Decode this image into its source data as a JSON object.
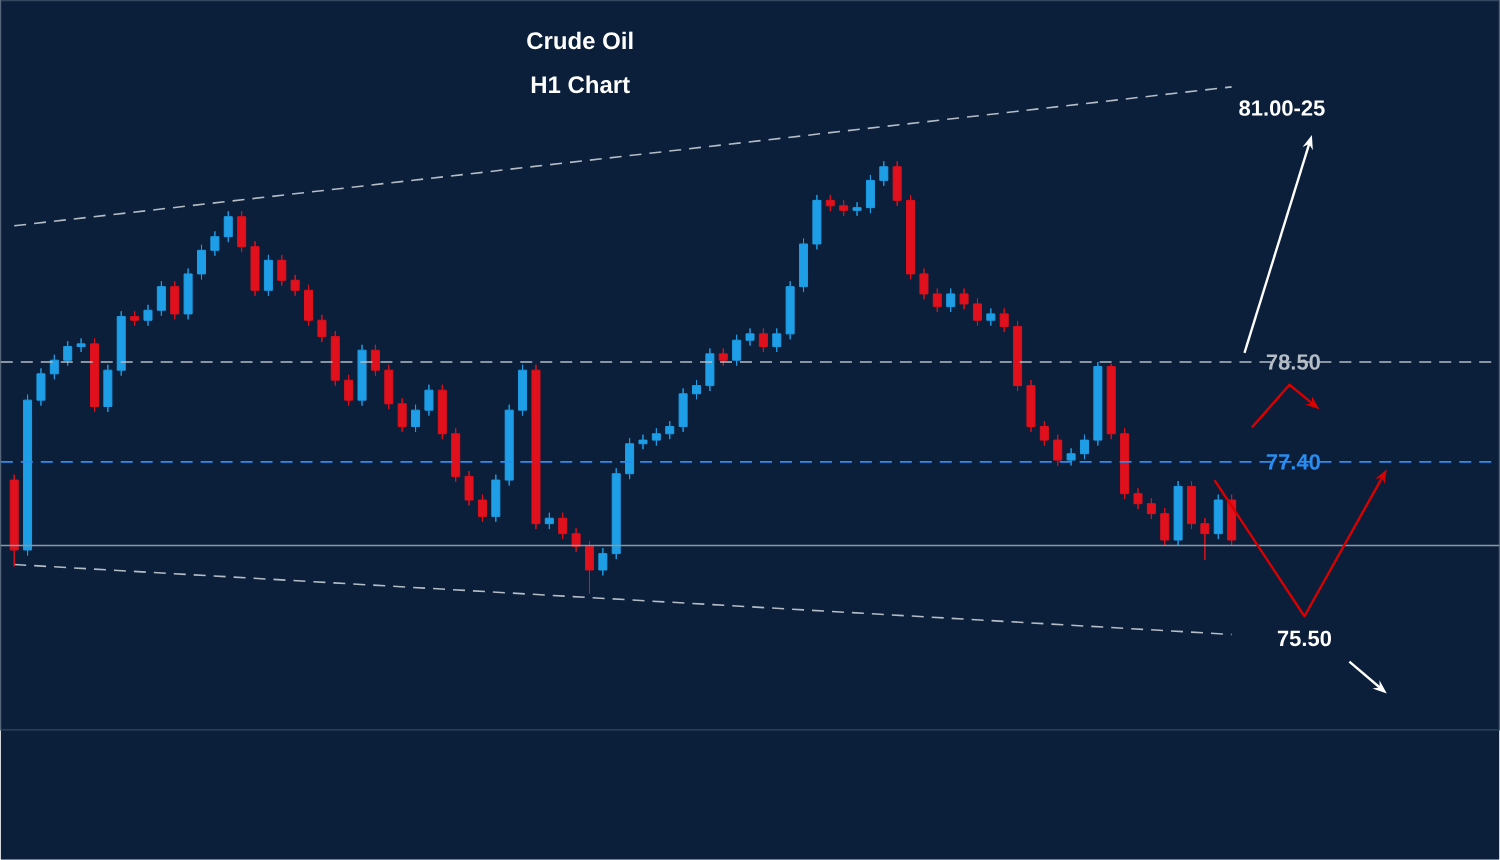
{
  "chart_data": {
    "type": "candlestick",
    "title": "Crude Oil",
    "subtitle": "H1 Chart",
    "categories": [
      null,
      null,
      null,
      null,
      null,
      null,
      null,
      null,
      null,
      null,
      null,
      null,
      null,
      null,
      null,
      null,
      null,
      null,
      null,
      null,
      null,
      null,
      null,
      null,
      null,
      null,
      null,
      null,
      null,
      null,
      null,
      null,
      null,
      null,
      null,
      null,
      null,
      null,
      null,
      null,
      null,
      null,
      null,
      null,
      null,
      null,
      null,
      null,
      null,
      null,
      null,
      null,
      null,
      null,
      null,
      null,
      null,
      null,
      null,
      null,
      null,
      null,
      null,
      null,
      null,
      null,
      null,
      null,
      null,
      null,
      null,
      null,
      null,
      null,
      null,
      null,
      null,
      null,
      null,
      null,
      null,
      null,
      null,
      null,
      null,
      null,
      null,
      null,
      null,
      null,
      null,
      null
    ],
    "colors": [
      "#e0101c",
      "#1e9ee6",
      "#1e9ee6",
      "#1e9ee6",
      "#1e9ee6",
      "#1e9ee6",
      "#e0101c",
      "#1e9ee6",
      "#1e9ee6",
      "#e0101c",
      "#1e9ee6",
      "#1e9ee6",
      "#e0101c",
      "#1e9ee6",
      "#1e9ee6",
      "#1e9ee6",
      "#1e9ee6",
      "#e0101c",
      "#e0101c",
      "#1e9ee6",
      "#e0101c",
      "#e0101c",
      "#e0101c",
      "#e0101c",
      "#e0101c",
      "#e0101c",
      "#1e9ee6",
      "#e0101c",
      "#e0101c",
      "#e0101c",
      "#1e9ee6",
      "#1e9ee6",
      "#e0101c",
      "#e0101c",
      "#e0101c",
      "#e0101c",
      "#1e9ee6",
      "#1e9ee6",
      "#1e9ee6",
      "#e0101c",
      "#1e9ee6",
      "#e0101c",
      "#e0101c",
      "#e0101c",
      "#1e9ee6",
      "#1e9ee6",
      "#1e9ee6",
      "#1e9ee6",
      "#1e9ee6",
      "#1e9ee6",
      "#1e9ee6",
      "#1e9ee6",
      "#1e9ee6",
      "#e0101c",
      "#1e9ee6",
      "#1e9ee6",
      "#e0101c",
      "#1e9ee6",
      "#1e9ee6",
      "#1e9ee6",
      "#1e9ee6",
      "#e0101c",
      "#e0101c",
      "#1e9ee6",
      "#1e9ee6",
      "#1e9ee6",
      "#e0101c",
      "#e0101c",
      "#e0101c",
      "#e0101c",
      "#1e9ee6",
      "#e0101c",
      "#e0101c",
      "#1e9ee6",
      "#e0101c",
      "#e0101c",
      "#e0101c",
      "#e0101c",
      "#e0101c",
      "#1e9ee6",
      "#1e9ee6",
      "#1e9ee6",
      "#e0101c",
      "#e0101c",
      "#e0101c",
      "#e0101c",
      "#e0101c",
      "#1e9ee6",
      "#e0101c",
      "#e0101c",
      "#1e9ee6",
      "#e0101c"
    ],
    "ohlc": [
      [
        77.2,
        77.26,
        76.25,
        76.43
      ],
      [
        76.43,
        78.14,
        76.37,
        78.08
      ],
      [
        78.08,
        78.43,
        78.02,
        78.37
      ],
      [
        78.37,
        78.58,
        78.31,
        78.52
      ],
      [
        78.52,
        78.73,
        78.46,
        78.67
      ],
      [
        78.67,
        78.76,
        78.61,
        78.7
      ],
      [
        78.7,
        78.76,
        77.95,
        78.01
      ],
      [
        78.01,
        78.47,
        77.95,
        78.41
      ],
      [
        78.41,
        79.06,
        78.35,
        79.0
      ],
      [
        79.0,
        79.06,
        78.9,
        78.96
      ],
      [
        78.96,
        79.13,
        78.9,
        79.07
      ],
      [
        79.07,
        79.39,
        79.01,
        79.33
      ],
      [
        79.33,
        79.39,
        78.97,
        79.03
      ],
      [
        79.03,
        79.53,
        78.97,
        79.47
      ],
      [
        79.47,
        79.79,
        79.41,
        79.73
      ],
      [
        79.73,
        79.94,
        79.67,
        79.88
      ],
      [
        79.88,
        80.16,
        79.82,
        80.1
      ],
      [
        80.1,
        80.16,
        79.71,
        79.77
      ],
      [
        79.77,
        79.83,
        79.23,
        79.29
      ],
      [
        79.29,
        79.68,
        79.23,
        79.62
      ],
      [
        79.62,
        79.68,
        79.34,
        79.4
      ],
      [
        79.4,
        79.46,
        79.23,
        79.29
      ],
      [
        79.29,
        79.35,
        78.9,
        78.96
      ],
      [
        78.96,
        79.02,
        78.72,
        78.78
      ],
      [
        78.78,
        78.84,
        78.24,
        78.3
      ],
      [
        78.3,
        78.36,
        78.02,
        78.08
      ],
      [
        78.08,
        78.69,
        78.02,
        78.63
      ],
      [
        78.63,
        78.69,
        78.35,
        78.41
      ],
      [
        78.41,
        78.47,
        77.98,
        78.04
      ],
      [
        78.04,
        78.1,
        77.73,
        77.79
      ],
      [
        77.79,
        78.03,
        77.73,
        77.97
      ],
      [
        77.97,
        78.25,
        77.91,
        78.19
      ],
      [
        78.19,
        78.25,
        77.65,
        77.71
      ],
      [
        77.71,
        77.77,
        77.18,
        77.24
      ],
      [
        77.24,
        77.3,
        76.92,
        76.98
      ],
      [
        76.98,
        77.04,
        76.74,
        76.8
      ],
      [
        76.8,
        77.26,
        76.74,
        77.2
      ],
      [
        77.2,
        78.03,
        77.14,
        77.97
      ],
      [
        77.97,
        78.47,
        77.91,
        78.41
      ],
      [
        78.41,
        78.47,
        76.66,
        76.72
      ],
      [
        76.72,
        76.84,
        76.66,
        76.78
      ],
      [
        76.78,
        76.84,
        76.55,
        76.61
      ],
      [
        76.61,
        76.67,
        76.41,
        76.47
      ],
      [
        76.47,
        76.53,
        75.95,
        76.21
      ],
      [
        76.21,
        76.45,
        76.15,
        76.39
      ],
      [
        76.39,
        77.33,
        76.33,
        77.27
      ],
      [
        77.27,
        77.66,
        77.21,
        77.6
      ],
      [
        77.6,
        77.7,
        77.54,
        77.64
      ],
      [
        77.64,
        77.77,
        77.58,
        77.71
      ],
      [
        77.71,
        77.85,
        77.65,
        77.79
      ],
      [
        77.79,
        78.21,
        77.73,
        78.15
      ],
      [
        78.15,
        78.3,
        78.09,
        78.24
      ],
      [
        78.24,
        78.65,
        78.18,
        78.59
      ],
      [
        78.59,
        78.65,
        78.46,
        78.52
      ],
      [
        78.52,
        78.8,
        78.46,
        78.74
      ],
      [
        78.74,
        78.87,
        78.68,
        78.81
      ],
      [
        78.81,
        78.87,
        78.61,
        78.67
      ],
      [
        78.67,
        78.87,
        78.61,
        78.81
      ],
      [
        78.81,
        79.39,
        78.75,
        79.33
      ],
      [
        79.33,
        79.86,
        79.27,
        79.8
      ],
      [
        79.8,
        80.34,
        79.74,
        80.28
      ],
      [
        80.28,
        80.34,
        80.16,
        80.22
      ],
      [
        80.22,
        80.28,
        80.11,
        80.17
      ],
      [
        80.17,
        80.26,
        80.11,
        80.2
      ],
      [
        80.2,
        80.56,
        80.14,
        80.5
      ],
      [
        80.5,
        80.71,
        80.44,
        80.65
      ],
      [
        80.65,
        80.71,
        80.22,
        80.28
      ],
      [
        80.28,
        80.34,
        79.41,
        79.47
      ],
      [
        79.47,
        79.53,
        79.19,
        79.25
      ],
      [
        79.25,
        79.31,
        79.05,
        79.11
      ],
      [
        79.11,
        79.31,
        79.05,
        79.25
      ],
      [
        79.25,
        79.31,
        79.08,
        79.14
      ],
      [
        79.14,
        79.2,
        78.9,
        78.96
      ],
      [
        78.96,
        79.09,
        78.9,
        79.03
      ],
      [
        79.03,
        79.09,
        78.83,
        78.89
      ],
      [
        78.89,
        78.95,
        78.18,
        78.24
      ],
      [
        78.24,
        78.3,
        77.73,
        77.79
      ],
      [
        77.79,
        77.85,
        77.58,
        77.64
      ],
      [
        77.64,
        77.7,
        77.36,
        77.42
      ],
      [
        77.42,
        77.55,
        77.36,
        77.49
      ],
      [
        77.49,
        77.7,
        77.43,
        77.64
      ],
      [
        77.64,
        78.5,
        77.58,
        78.45
      ],
      [
        78.45,
        78.48,
        77.65,
        77.71
      ],
      [
        77.71,
        77.77,
        76.99,
        77.05
      ],
      [
        77.05,
        77.11,
        76.88,
        76.94
      ],
      [
        76.94,
        77.0,
        76.77,
        76.83
      ],
      [
        76.83,
        76.89,
        76.48,
        76.54
      ],
      [
        76.54,
        77.19,
        76.48,
        77.13
      ],
      [
        77.13,
        77.19,
        76.66,
        76.72
      ],
      [
        76.72,
        76.78,
        76.32,
        76.61
      ],
      [
        76.61,
        77.04,
        76.55,
        76.98
      ],
      [
        76.98,
        77.04,
        76.48,
        76.54
      ]
    ],
    "series": [
      {
        "type": "line",
        "color": "#b4bcc6",
        "line_style": "dashed",
        "values": [
          80.0,
          null,
          null,
          null,
          null,
          null,
          null,
          null,
          null,
          null,
          null,
          null,
          null,
          null,
          null,
          null,
          null,
          null,
          null,
          null,
          null,
          null,
          null,
          null,
          null,
          null,
          null,
          null,
          null,
          null,
          null,
          null,
          null,
          null,
          null,
          null,
          null,
          null,
          null,
          null,
          null,
          null,
          null,
          null,
          null,
          null,
          null,
          null,
          null,
          null,
          null,
          null,
          null,
          null,
          null,
          null,
          null,
          null,
          null,
          null,
          null,
          null,
          null,
          null,
          null,
          null,
          null,
          null,
          null,
          null,
          null,
          null,
          null,
          null,
          null,
          null,
          null,
          null,
          null,
          null,
          null,
          null,
          null,
          null,
          null,
          null,
          null,
          null,
          null,
          null,
          null,
          81.53
        ]
      },
      {
        "type": "line",
        "color": "#b4bcc6",
        "line_style": "dashed",
        "values": [
          76.27,
          null,
          null,
          null,
          null,
          null,
          null,
          null,
          null,
          null,
          null,
          null,
          null,
          null,
          null,
          null,
          null,
          null,
          null,
          null,
          null,
          null,
          null,
          null,
          null,
          null,
          null,
          null,
          null,
          null,
          null,
          null,
          null,
          null,
          null,
          null,
          null,
          null,
          null,
          null,
          null,
          null,
          null,
          null,
          null,
          null,
          null,
          null,
          null,
          null,
          null,
          null,
          null,
          null,
          null,
          null,
          null,
          null,
          null,
          null,
          null,
          null,
          null,
          null,
          null,
          null,
          null,
          null,
          null,
          null,
          null,
          null,
          null,
          null,
          null,
          null,
          null,
          null,
          null,
          null,
          null,
          null,
          null,
          null,
          null,
          null,
          null,
          null,
          null,
          null,
          null,
          75.5
        ]
      }
    ],
    "ref_lines": [
      {
        "axis": "y",
        "value": 78.5,
        "color": "#b4bcc6",
        "line_style": "dashed"
      },
      {
        "axis": "y",
        "value": 77.4,
        "color": "#2a8cf0",
        "line_style": "dashed"
      },
      {
        "axis": "y",
        "value": 76.48,
        "color": "#8c96a4",
        "line_style": "solid"
      }
    ],
    "annotations": [
      "81.00-25",
      "75.50"
    ],
    "yticks": [
      {
        "value": 77.4,
        "label": "77.40"
      },
      {
        "value": 78.5,
        "label": "78.50"
      }
    ],
    "ylim": [
      74.45,
      82.48
    ],
    "tick_labels": "y"
  }
}
